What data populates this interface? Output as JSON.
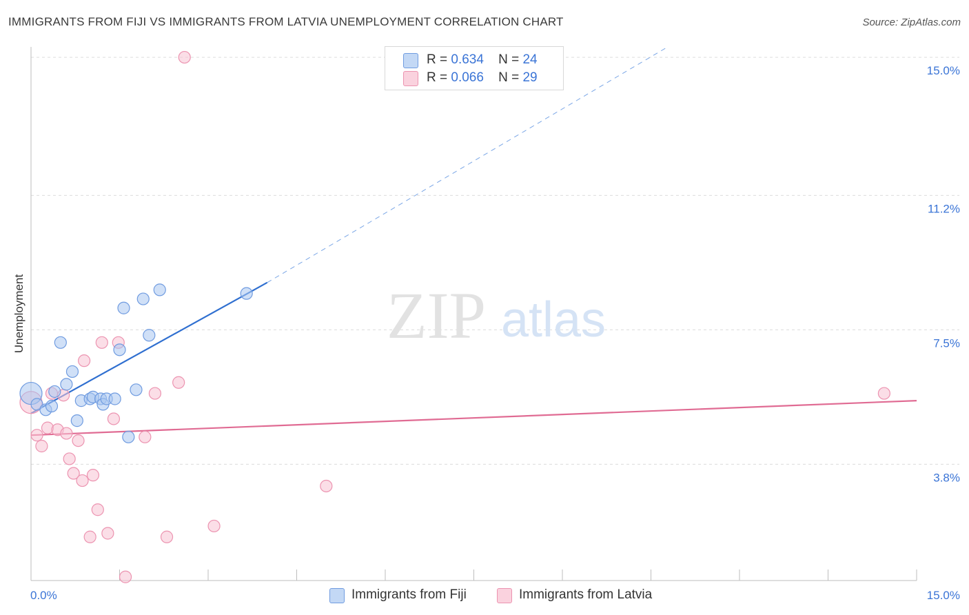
{
  "title": "IMMIGRANTS FROM FIJI VS IMMIGRANTS FROM LATVIA UNEMPLOYMENT CORRELATION CHART",
  "source": "Source: ZipAtlas.com",
  "watermark": {
    "zip": "ZIP",
    "atlas": "atlas"
  },
  "legend_top": [
    {
      "r_label": "R =",
      "r_value": "0.634",
      "n_label": "N =",
      "n_value": "24",
      "color": "#a9c7f0",
      "border": "#6f9be0"
    },
    {
      "r_label": "R =",
      "r_value": "0.066",
      "n_label": "N =",
      "n_value": "29",
      "color": "#f8c3d3",
      "border": "#ec93b0"
    }
  ],
  "chart_data": {
    "type": "scatter",
    "title": "IMMIGRANTS FROM FIJI VS IMMIGRANTS FROM LATVIA UNEMPLOYMENT CORRELATION CHART",
    "xlabel": "",
    "ylabel": "Unemployment",
    "xlim": [
      0,
      15
    ],
    "ylim": [
      0.6,
      15.4
    ],
    "x_tick_labels": [
      "0.0%",
      "15.0%"
    ],
    "y_ticks": [
      3.8,
      7.5,
      11.2,
      15.0
    ],
    "y_tick_labels": [
      "3.8%",
      "7.5%",
      "11.2%",
      "15.0%"
    ],
    "series": [
      {
        "name": "Immigrants from Fiji",
        "color": "#a9c7f0",
        "stroke": "#6f9be0",
        "line_color": "#2f6fd0",
        "points": [
          [
            0.0,
            5.75
          ],
          [
            0.1,
            5.45
          ],
          [
            0.25,
            5.3
          ],
          [
            0.35,
            5.4
          ],
          [
            0.4,
            5.8
          ],
          [
            0.5,
            7.15
          ],
          [
            0.6,
            6.0
          ],
          [
            0.7,
            6.35
          ],
          [
            0.78,
            5.0
          ],
          [
            0.85,
            5.55
          ],
          [
            1.0,
            5.6
          ],
          [
            1.05,
            5.65
          ],
          [
            1.18,
            5.6
          ],
          [
            1.22,
            5.45
          ],
          [
            1.28,
            5.6
          ],
          [
            1.42,
            5.6
          ],
          [
            1.5,
            6.95
          ],
          [
            1.57,
            8.1
          ],
          [
            1.65,
            4.55
          ],
          [
            1.78,
            5.85
          ],
          [
            1.9,
            8.35
          ],
          [
            2.0,
            7.35
          ],
          [
            2.18,
            8.6
          ],
          [
            3.65,
            8.5
          ]
        ],
        "trend": {
          "x0": 0.0,
          "y0": 5.2,
          "x1": 4.0,
          "y1": 8.8,
          "x_dash_end": 10.8,
          "y_dash_end": 15.3
        }
      },
      {
        "name": "Immigrants from Latvia",
        "color": "#f8c3d3",
        "stroke": "#ec93b0",
        "line_color": "#e06b93",
        "points": [
          [
            0.0,
            5.5
          ],
          [
            0.1,
            4.6
          ],
          [
            0.18,
            4.3
          ],
          [
            0.28,
            4.8
          ],
          [
            0.35,
            5.75
          ],
          [
            0.45,
            4.75
          ],
          [
            0.55,
            5.7
          ],
          [
            0.6,
            4.65
          ],
          [
            0.65,
            3.95
          ],
          [
            0.72,
            3.55
          ],
          [
            0.8,
            4.45
          ],
          [
            0.87,
            3.35
          ],
          [
            0.9,
            6.65
          ],
          [
            1.0,
            1.8
          ],
          [
            1.05,
            3.5
          ],
          [
            1.13,
            2.55
          ],
          [
            1.2,
            7.15
          ],
          [
            1.3,
            1.9
          ],
          [
            1.4,
            5.05
          ],
          [
            1.48,
            7.15
          ],
          [
            1.6,
            0.7
          ],
          [
            1.93,
            4.55
          ],
          [
            2.1,
            5.75
          ],
          [
            2.3,
            1.8
          ],
          [
            2.5,
            6.05
          ],
          [
            2.6,
            15.0
          ],
          [
            3.1,
            2.1
          ],
          [
            5.0,
            3.2
          ],
          [
            14.45,
            5.75
          ]
        ],
        "trend": {
          "x0": 0.0,
          "y0": 4.6,
          "x1": 15.0,
          "y1": 5.55
        }
      }
    ]
  }
}
